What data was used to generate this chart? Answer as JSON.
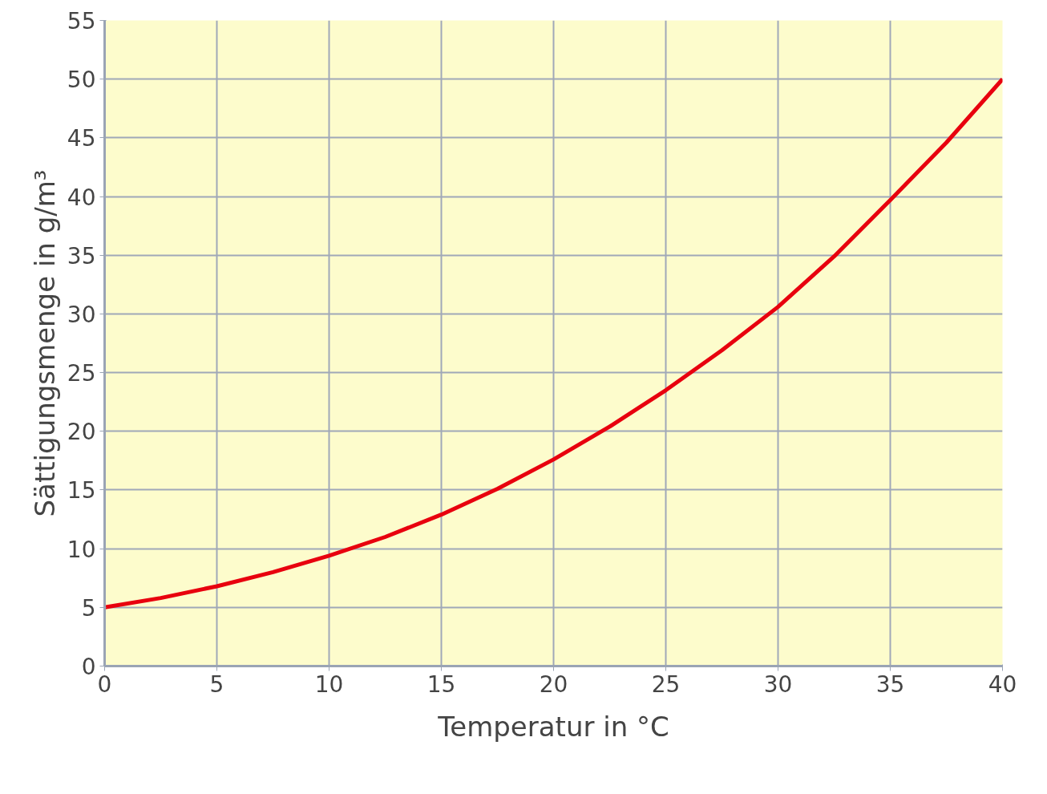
{
  "chart_data": {
    "type": "line",
    "xlabel": "Temperatur in °C",
    "ylabel": "Sättigungsmenge in g/m³",
    "x": [
      0,
      2.5,
      5,
      7.5,
      10,
      12.5,
      15,
      17.5,
      20,
      22.5,
      25,
      27.5,
      30,
      32.5,
      35,
      37.5,
      40
    ],
    "series": [
      {
        "color": "#e8000e",
        "values": [
          5,
          5.8,
          6.8,
          8.0,
          9.4,
          11.0,
          12.9,
          15.1,
          17.6,
          20.4,
          23.5,
          26.9,
          30.6,
          34.9,
          39.7,
          44.6,
          50
        ]
      }
    ],
    "xlim": [
      0,
      40
    ],
    "ylim": [
      0,
      55
    ],
    "xticks": [
      0,
      5,
      10,
      15,
      20,
      25,
      30,
      35,
      40
    ],
    "yticks": [
      0,
      5,
      10,
      15,
      20,
      25,
      30,
      35,
      40,
      45,
      50,
      55
    ],
    "grid": true,
    "marker": "none",
    "line_style": "solid"
  }
}
